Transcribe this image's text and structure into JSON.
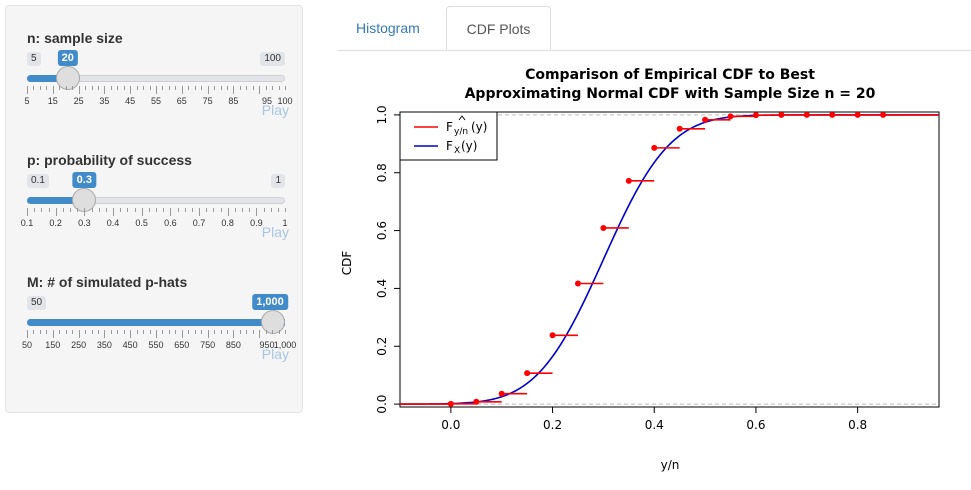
{
  "sidebar": {
    "controls": [
      {
        "label": "n: sample size",
        "min": "5",
        "max": "100",
        "value": "20",
        "fraction": 0.1579,
        "ticks": [
          "5",
          "15",
          "25",
          "35",
          "45",
          "55",
          "65",
          "75",
          "85",
          "95",
          "100"
        ],
        "play": "Play"
      },
      {
        "label": "p: probability of success",
        "min": "0.1",
        "max": "1",
        "value": "0.3",
        "fraction": 0.2222,
        "ticks": [
          "0.1",
          "0.2",
          "0.3",
          "0.4",
          "0.5",
          "0.6",
          "0.7",
          "0.8",
          "0.9",
          "1"
        ],
        "play": "Play"
      },
      {
        "label": "M: # of simulated p-hats",
        "min": "50",
        "max": "1,000",
        "value": "1,000",
        "fraction": 1.0,
        "ticks": [
          "50",
          "150",
          "250",
          "350",
          "450",
          "550",
          "650",
          "750",
          "850",
          "950",
          "1,000"
        ],
        "play": "Play"
      }
    ]
  },
  "tabs": [
    {
      "label": "Histogram",
      "active": false
    },
    {
      "label": "CDF Plots",
      "active": true
    }
  ],
  "chart_data": {
    "type": "line",
    "title": "Comparison of Empirical CDF to Best\nApproximating Normal CDF with Sample Size n = 20",
    "title_line1": "Comparison of Empirical CDF to Best",
    "title_line2": "Approximating Normal CDF with Sample Size n = 20",
    "xlabel": "y/n",
    "ylabel": "CDF",
    "xlim": [
      -0.1,
      0.96
    ],
    "ylim": [
      -0.01,
      1.01
    ],
    "xticks": [
      "0.0",
      "0.2",
      "0.4",
      "0.6",
      "0.8"
    ],
    "yticks": [
      "0.0",
      "0.2",
      "0.4",
      "0.6",
      "0.8",
      "1.0"
    ],
    "legend": {
      "position": "top-left",
      "entries": [
        {
          "label": "F",
          "sub": "y/n",
          "suffix": "(y)",
          "hat": true,
          "color": "#ff0000"
        },
        {
          "label": "F",
          "sub": "X",
          "suffix": "(y)",
          "hat": false,
          "color": "#0000cc"
        }
      ]
    },
    "series": [
      {
        "name": "Fŷ/n(y)",
        "kind": "step",
        "color": "#ff0000",
        "x": [
          0.0,
          0.05,
          0.1,
          0.15,
          0.2,
          0.25,
          0.3,
          0.35,
          0.4,
          0.45,
          0.5,
          0.55,
          0.6,
          0.65,
          0.7,
          0.75,
          0.8,
          0.85
        ],
        "values": [
          0.001,
          0.008,
          0.036,
          0.107,
          0.238,
          0.417,
          0.609,
          0.772,
          0.886,
          0.952,
          0.983,
          0.995,
          0.999,
          1.0,
          1.0,
          1.0,
          1.0,
          1.0
        ]
      },
      {
        "name": "FX(y)",
        "kind": "curve",
        "color": "#0000cc",
        "mean": 0.3,
        "sd": 0.1025
      }
    ],
    "reference_lines": [
      0,
      1
    ]
  }
}
